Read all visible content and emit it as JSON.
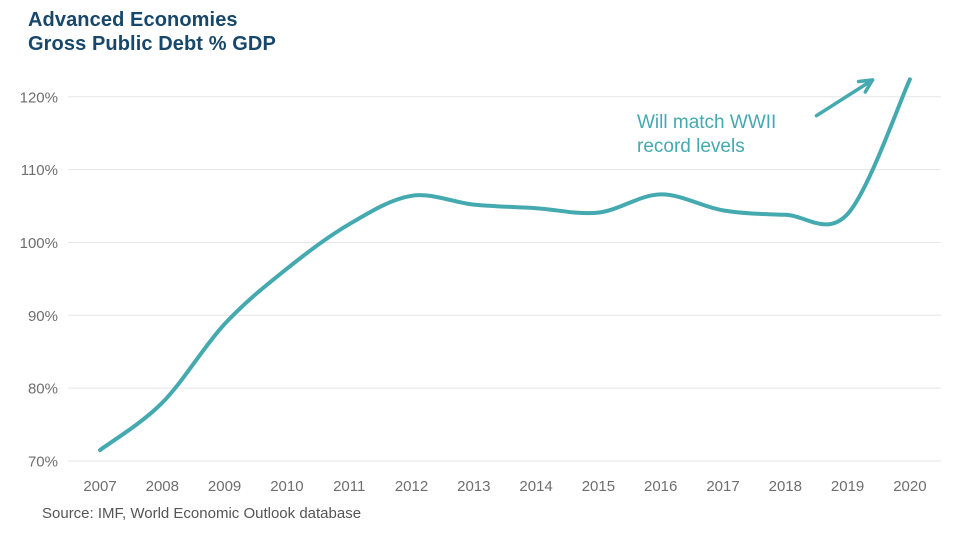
{
  "page": {
    "title_line1": "Advanced Economies",
    "title_line2": "Gross Public Debt % GDP",
    "source": "Source: IMF, World Economic Outlook database"
  },
  "annotation": {
    "line1": "Will match WWII",
    "line2": "record levels"
  },
  "colors": {
    "line_teal": "#45a9b0",
    "title_navy": "#17476b",
    "tick_gray": "#6e6e6e",
    "source_gray": "#555555",
    "gridline_gray": "#e5e5e5",
    "background": "#ffffff"
  },
  "chart_data": {
    "type": "line",
    "title": "Advanced Economies Gross Public Debt % GDP",
    "categories": [
      2007,
      2008,
      2009,
      2010,
      2011,
      2012,
      2013,
      2014,
      2015,
      2016,
      2017,
      2018,
      2019,
      2020
    ],
    "values": [
      71.5,
      78.0,
      88.8,
      96.4,
      102.5,
      106.4,
      105.2,
      104.7,
      104.1,
      106.6,
      104.4,
      103.8,
      103.9,
      122.4
    ],
    "xlabel": "",
    "ylabel": "",
    "ylim": [
      70,
      125
    ],
    "yticks": [
      70,
      80,
      90,
      100,
      110,
      120
    ],
    "ytick_suffix": "%",
    "grid": "horizontal-only",
    "legend": "none",
    "smoothing": "spline",
    "annotation": {
      "text": "Will match WWII record levels",
      "arrow_from_xy": [
        2018.5,
        117.4
      ],
      "arrow_to_xy": [
        2019.4,
        122.3
      ]
    }
  }
}
